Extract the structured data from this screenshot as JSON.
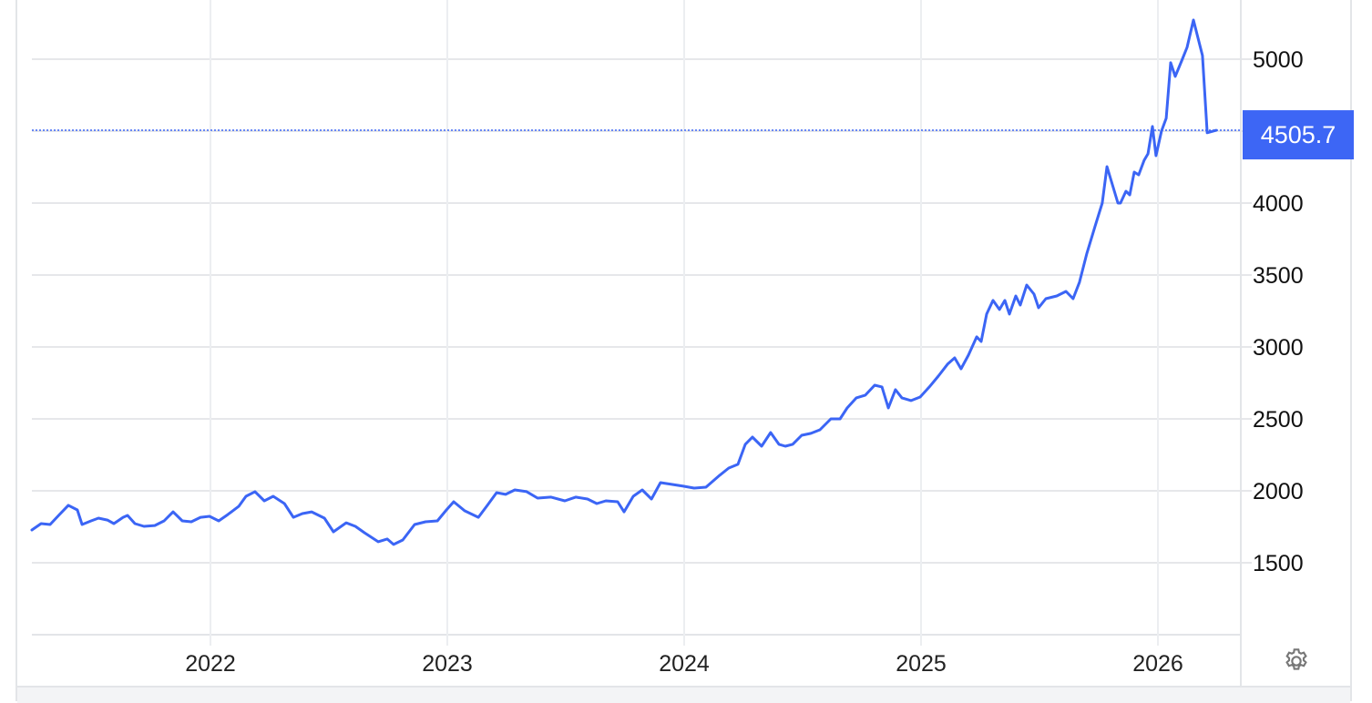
{
  "chart_data": {
    "type": "line",
    "title": "",
    "xlabel": "",
    "ylabel": "",
    "xlim": [
      2021.246,
      2026.35
    ],
    "ylim": [
      1000,
      5411
    ],
    "x_ticks": [
      2022,
      2023,
      2024,
      2025,
      2026
    ],
    "x_tick_labels": [
      "2022",
      "2023",
      "2024",
      "2025",
      "2026"
    ],
    "y_ticks": [
      1500,
      2000,
      2500,
      3000,
      3500,
      4000,
      4500,
      5000
    ],
    "y_tick_labels": [
      "1500",
      "2000",
      "2500",
      "3000",
      "3500",
      "4000",
      "",
      "5000"
    ],
    "y_axis_position": "right",
    "grid": true,
    "line_color": "#3b65f5",
    "last_value": 4505.7,
    "last_value_label": "4505.7",
    "last_value_badge_color": "#3d66f5",
    "series": [
      {
        "x": [
          2021.246,
          2021.285,
          2021.323,
          2021.362,
          2021.4,
          2021.438,
          2021.458,
          2021.496,
          2021.527,
          2021.565,
          2021.592,
          2021.631,
          2021.65,
          2021.681,
          2021.719,
          2021.765,
          2021.804,
          2021.842,
          2021.881,
          2021.919,
          2021.958,
          2021.996,
          2022.035,
          2022.073,
          2022.119,
          2022.15,
          2022.188,
          2022.227,
          2022.265,
          2022.312,
          2022.35,
          2022.388,
          2022.427,
          2022.481,
          2022.519,
          2022.573,
          2022.612,
          2022.65,
          2022.708,
          2022.746,
          2022.773,
          2022.812,
          2022.862,
          2022.908,
          2022.958,
          2022.996,
          2023.027,
          2023.073,
          2023.131,
          2023.169,
          2023.208,
          2023.246,
          2023.285,
          2023.335,
          2023.381,
          2023.438,
          2023.496,
          2023.542,
          2023.592,
          2023.631,
          2023.669,
          2023.719,
          2023.746,
          2023.785,
          2023.823,
          2023.862,
          2023.9,
          2023.95,
          2023.996,
          2024.042,
          2024.092,
          2024.15,
          2024.188,
          2024.227,
          2024.258,
          2024.288,
          2024.327,
          2024.365,
          2024.4,
          2024.427,
          2024.458,
          2024.496,
          2024.535,
          2024.573,
          2024.619,
          2024.658,
          2024.688,
          2024.727,
          2024.765,
          2024.804,
          2024.835,
          2024.862,
          2024.892,
          2024.919,
          2024.958,
          2024.996,
          2025.035,
          2025.073,
          2025.112,
          2025.142,
          2025.169,
          2025.2,
          2025.235,
          2025.254,
          2025.277,
          2025.304,
          2025.331,
          2025.354,
          2025.373,
          2025.4,
          2025.419,
          2025.446,
          2025.477,
          2025.496,
          2025.527,
          2025.573,
          2025.612,
          2025.642,
          2025.669,
          2025.7,
          2025.735,
          2025.765,
          2025.785,
          2025.831,
          2025.842,
          2025.865,
          2025.881,
          2025.9,
          2025.919,
          2025.942,
          2025.958,
          2025.977,
          2025.992,
          2026.015,
          2026.035,
          2026.054,
          2026.073,
          2026.1,
          2026.123,
          2026.15,
          2026.188,
          2026.208,
          2026.246
        ],
        "values": [
          1728,
          1772,
          1766,
          1835,
          1899,
          1867,
          1766,
          1791,
          1810,
          1797,
          1772,
          1816,
          1829,
          1772,
          1753,
          1759,
          1791,
          1854,
          1791,
          1785,
          1816,
          1823,
          1791,
          1835,
          1892,
          1962,
          1994,
          1930,
          1962,
          1911,
          1816,
          1842,
          1854,
          1810,
          1715,
          1778,
          1753,
          1709,
          1646,
          1665,
          1627,
          1658,
          1766,
          1785,
          1791,
          1867,
          1924,
          1861,
          1816,
          1899,
          1987,
          1975,
          2006,
          1994,
          1949,
          1956,
          1930,
          1956,
          1943,
          1911,
          1930,
          1924,
          1854,
          1962,
          2006,
          1943,
          2057,
          2044,
          2032,
          2019,
          2025,
          2108,
          2158,
          2184,
          2323,
          2373,
          2310,
          2405,
          2323,
          2310,
          2323,
          2386,
          2399,
          2424,
          2500,
          2500,
          2576,
          2646,
          2665,
          2734,
          2722,
          2576,
          2703,
          2646,
          2627,
          2652,
          2722,
          2797,
          2880,
          2924,
          2848,
          2943,
          3070,
          3038,
          3228,
          3323,
          3260,
          3323,
          3228,
          3354,
          3291,
          3430,
          3367,
          3272,
          3335,
          3354,
          3386,
          3335,
          3450,
          3650,
          3840,
          4000,
          4253,
          4000,
          4000,
          4082,
          4057,
          4215,
          4196,
          4297,
          4342,
          4532,
          4329,
          4500,
          4589,
          4975,
          4880,
          4987,
          5082,
          5272,
          5025,
          4488,
          4505.7
        ]
      }
    ]
  },
  "icons": {
    "settings": "gear-icon"
  }
}
